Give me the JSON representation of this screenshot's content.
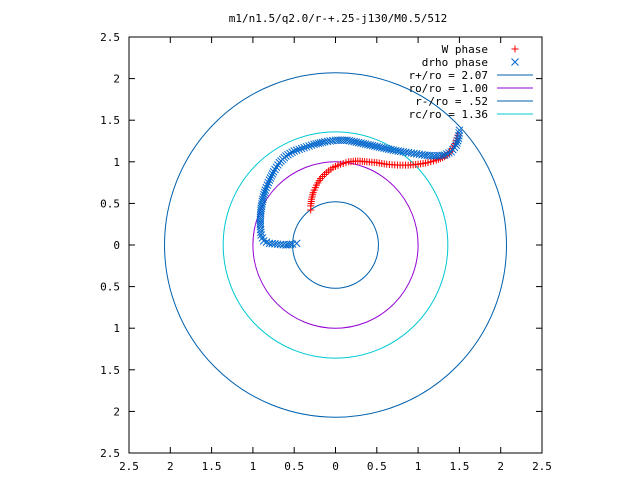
{
  "chart_data": {
    "type": "scatter",
    "title": "m1/n1.5/q2.0/r-+.25-j130/M0.5/512",
    "xlabel": "",
    "ylabel": "",
    "xlim": [
      -2.5,
      2.5
    ],
    "ylim": [
      -2.5,
      2.5
    ],
    "xticks": [
      -2.5,
      -2,
      -1.5,
      -1,
      -0.5,
      0,
      0.5,
      1,
      1.5,
      2,
      2.5
    ],
    "xtick_labels": [
      "2.5",
      "2",
      "1.5",
      "1",
      "0.5",
      "0",
      "0.5",
      "1",
      "1.5",
      "2",
      "2.5"
    ],
    "yticks": [
      2.5,
      2,
      1.5,
      1,
      0.5,
      0,
      -0.5,
      -1,
      -1.5,
      -2,
      -2.5
    ],
    "ytick_labels": [
      "2.5",
      "2",
      "1.5",
      "1",
      "0.5",
      "0",
      "0.5",
      "1",
      "1.5",
      "2",
      "2.5"
    ],
    "grid": false,
    "legend_position": "top-right",
    "series": [
      {
        "name": "W phase",
        "kind": "points",
        "marker": "+",
        "color": "#ff0000",
        "points": [
          [
            1.48,
            1.32
          ],
          [
            1.45,
            1.22
          ],
          [
            1.4,
            1.13
          ],
          [
            1.32,
            1.06
          ],
          [
            1.22,
            1.02
          ],
          [
            1.12,
            0.99
          ],
          [
            1.0,
            0.97
          ],
          [
            0.88,
            0.96
          ],
          [
            0.75,
            0.96
          ],
          [
            0.62,
            0.97
          ],
          [
            0.5,
            0.99
          ],
          [
            0.38,
            1.0
          ],
          [
            0.27,
            1.01
          ],
          [
            0.16,
            1.0
          ],
          [
            0.06,
            0.97
          ],
          [
            -0.03,
            0.93
          ],
          [
            -0.11,
            0.87
          ],
          [
            -0.18,
            0.8
          ],
          [
            -0.23,
            0.72
          ],
          [
            -0.27,
            0.63
          ],
          [
            -0.29,
            0.55
          ],
          [
            -0.3,
            0.47
          ],
          [
            -0.3,
            0.42
          ]
        ]
      },
      {
        "name": "drho phase",
        "kind": "points",
        "marker": "x",
        "color": "#0066cc",
        "points": [
          [
            1.5,
            1.38
          ],
          [
            1.49,
            1.28
          ],
          [
            1.46,
            1.2
          ],
          [
            1.4,
            1.12
          ],
          [
            1.32,
            1.08
          ],
          [
            1.2,
            1.07
          ],
          [
            1.08,
            1.08
          ],
          [
            0.95,
            1.1
          ],
          [
            0.82,
            1.12
          ],
          [
            0.7,
            1.14
          ],
          [
            0.56,
            1.17
          ],
          [
            0.42,
            1.2
          ],
          [
            0.28,
            1.23
          ],
          [
            0.14,
            1.26
          ],
          [
            0.0,
            1.26
          ],
          [
            -0.13,
            1.24
          ],
          [
            -0.26,
            1.21
          ],
          [
            -0.38,
            1.17
          ],
          [
            -0.5,
            1.13
          ],
          [
            -0.6,
            1.07
          ],
          [
            -0.68,
            0.99
          ],
          [
            -0.75,
            0.88
          ],
          [
            -0.8,
            0.78
          ],
          [
            -0.85,
            0.66
          ],
          [
            -0.88,
            0.55
          ],
          [
            -0.9,
            0.44
          ],
          [
            -0.91,
            0.33
          ],
          [
            -0.91,
            0.22
          ],
          [
            -0.9,
            0.12
          ],
          [
            -0.87,
            0.05
          ],
          [
            -0.8,
            0.02
          ],
          [
            -0.7,
            0.01
          ],
          [
            -0.6,
            0.0
          ],
          [
            -0.52,
            0.01
          ],
          [
            -0.47,
            0.02
          ]
        ]
      },
      {
        "name": "r+/ro = 2.07",
        "kind": "circle",
        "radius": 2.07,
        "color": "#0060ad"
      },
      {
        "name": "ro/ro = 1.00",
        "kind": "circle",
        "radius": 1.0,
        "color": "#9400d3"
      },
      {
        "name": "r-/ro = .52",
        "kind": "circle",
        "radius": 0.52,
        "color": "#0060ad"
      },
      {
        "name": "rc/ro = 1.36",
        "kind": "circle",
        "radius": 1.36,
        "color": "#00c8d2"
      }
    ]
  }
}
